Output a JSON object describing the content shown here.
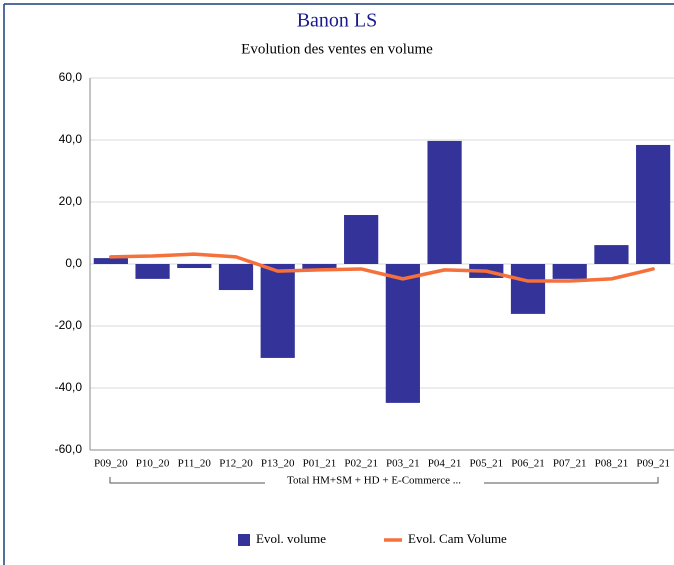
{
  "chart_data": {
    "type": "bar",
    "title": "Banon LS",
    "subtitle": "Evolution des ventes en volume",
    "group_label": "Total HM+SM + HD + E-Commerce ...",
    "categories": [
      "P09_20",
      "P10_20",
      "P11_20",
      "P12_20",
      "P13_20",
      "P01_21",
      "P02_21",
      "P03_21",
      "P04_21",
      "P05_21",
      "P06_21",
      "P07_21",
      "P08_21",
      "P09_21"
    ],
    "series": [
      {
        "name": "Evol. volume",
        "type": "bar",
        "color": "#333399",
        "values": [
          1.9,
          -4.8,
          -1.3,
          -8.4,
          -30.3,
          -1.6,
          15.8,
          -44.8,
          39.7,
          -4.5,
          -16.1,
          -4.8,
          6.1,
          38.4
        ]
      },
      {
        "name": "Evol. Cam Volume",
        "type": "line",
        "color": "#f5703a",
        "values": [
          2.3,
          2.6,
          3.2,
          2.3,
          -2.3,
          -1.9,
          -1.6,
          -4.8,
          -1.9,
          -2.3,
          -5.5,
          -5.5,
          -4.8,
          -1.6
        ]
      }
    ],
    "ylim": [
      -60,
      60
    ],
    "yticks": [
      {
        "value": -60,
        "label": "-60,0"
      },
      {
        "value": -40,
        "label": "-40,0"
      },
      {
        "value": -20,
        "label": "-20,0"
      },
      {
        "value": 0,
        "label": "0,0"
      },
      {
        "value": 20,
        "label": "20,0"
      },
      {
        "value": 40,
        "label": "40,0"
      },
      {
        "value": 60,
        "label": "60,0"
      }
    ],
    "grid": true,
    "legend": "bottom"
  }
}
